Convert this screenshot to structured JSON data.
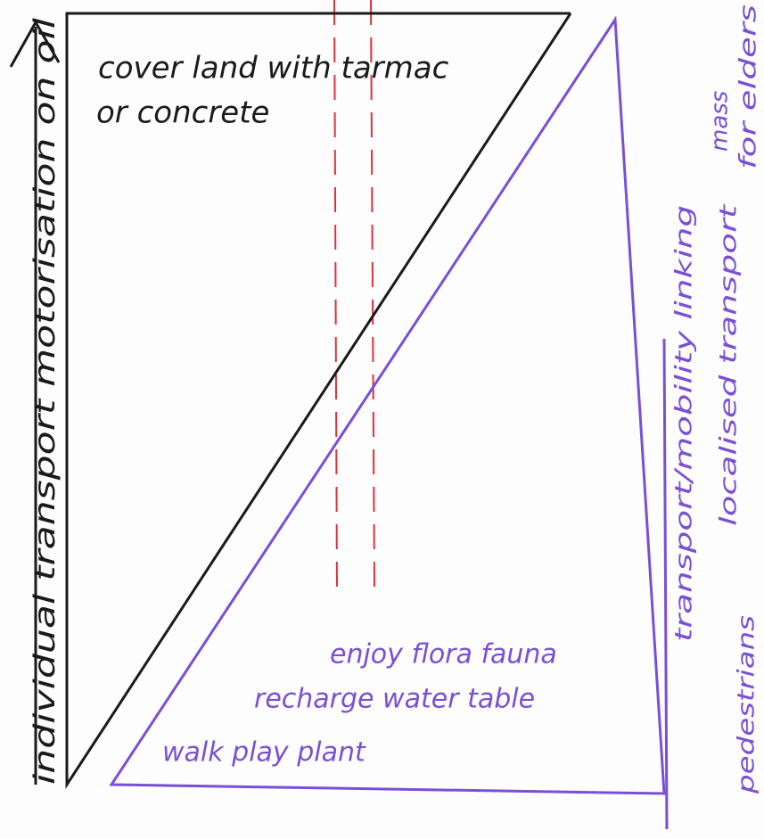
{
  "diagram": {
    "left_axis_label": "individual transport motorisation on oil",
    "black_labels": [
      "cover land with tarmac",
      "or concrete"
    ],
    "purple_labels": [
      "enjoy flora fauna",
      "recharge water table",
      "walk play plant"
    ],
    "right_labels": [
      "transport/mobility linking",
      "localised transport",
      "pedestrians",
      "mass",
      "for elders"
    ]
  }
}
